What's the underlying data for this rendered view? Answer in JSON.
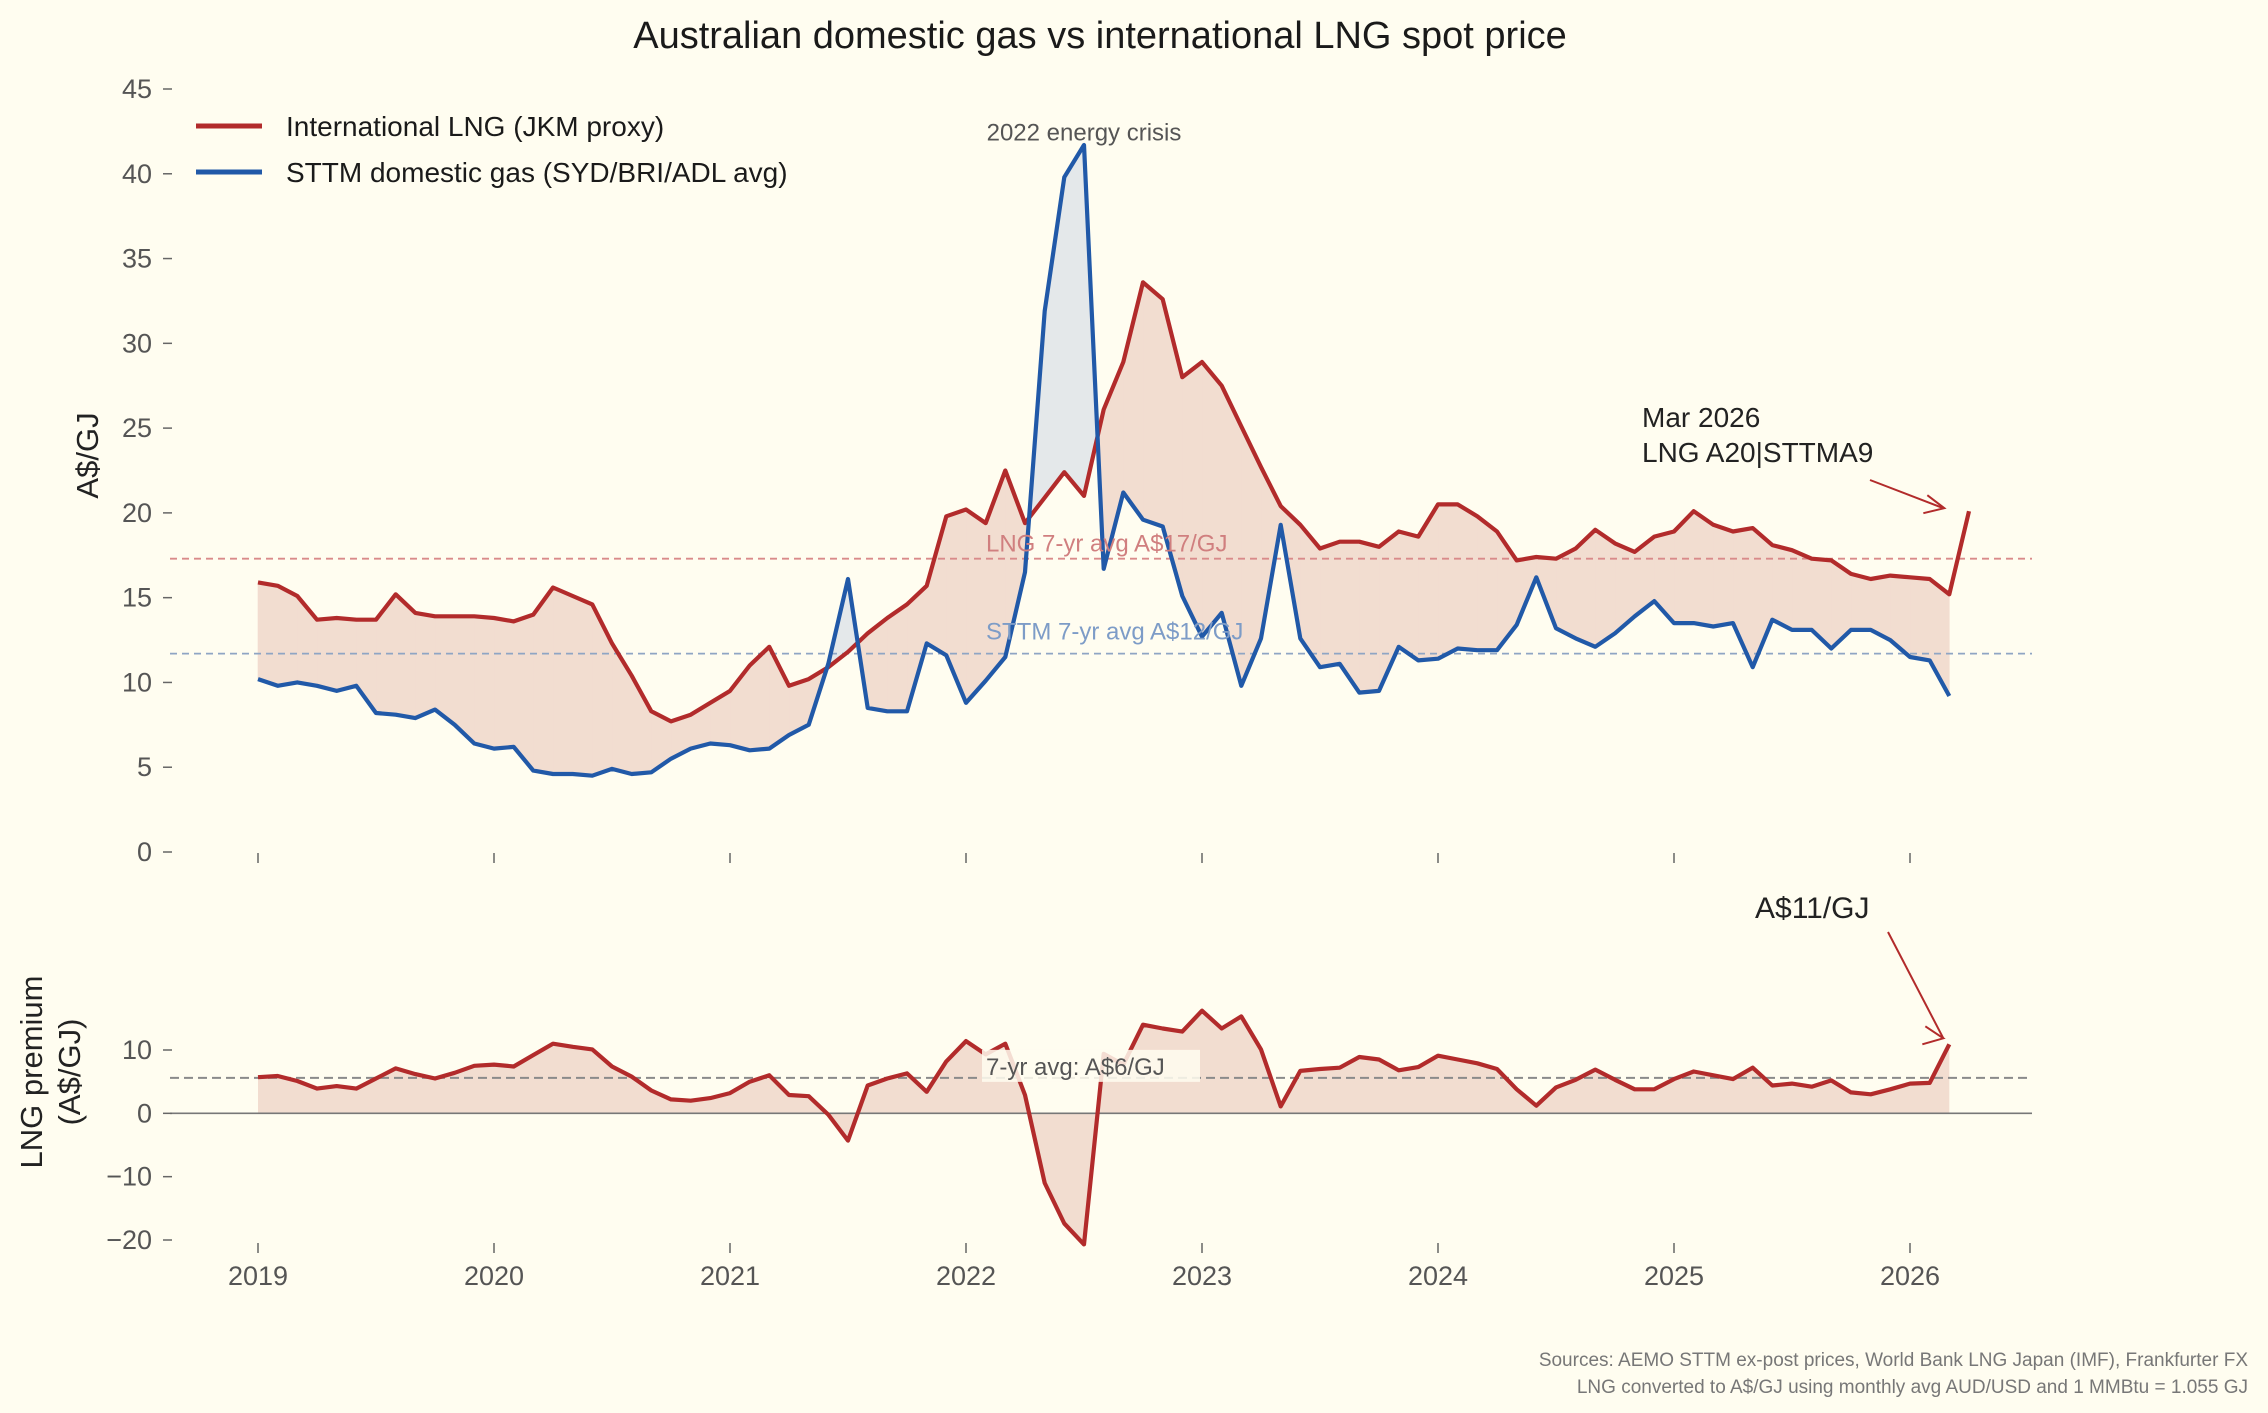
{
  "title": "Australian domestic gas vs international LNG spot price",
  "colors": {
    "lng": "#b22b2b",
    "sttm": "#2159a8",
    "fill_lng": "#f2ddd0",
    "fill_sttm": "#e4e8ea",
    "background": "#fffdf0"
  },
  "sources": [
    "Sources: AEMO STTM ex-post prices, World Bank LNG Japan (IMF), Frankfurter FX",
    "LNG converted to A$/GJ using monthly avg AUD/USD and 1 MMBtu = 1.055 GJ"
  ],
  "chart_data": [
    {
      "type": "line",
      "ylabel": "A$/GJ",
      "ylim": [
        0,
        45
      ],
      "yticks": [
        0,
        5,
        10,
        15,
        20,
        25,
        30,
        35,
        40,
        45
      ],
      "xlim": [
        "2018-08",
        "2026-07"
      ],
      "xticks": [
        "2019",
        "2020",
        "2021",
        "2022",
        "2023",
        "2024",
        "2025",
        "2026"
      ],
      "legend_position": "upper-left",
      "grid": false,
      "start": "2019-01",
      "series": [
        {
          "name": "International LNG (JKM proxy)",
          "color": "#b22b2b",
          "values": [
            15.9,
            15.7,
            15.1,
            13.7,
            13.8,
            13.7,
            13.7,
            15.2,
            14.1,
            13.9,
            13.9,
            13.9,
            13.8,
            13.6,
            14.0,
            15.6,
            15.1,
            14.6,
            12.3,
            10.4,
            8.3,
            7.7,
            8.1,
            8.8,
            9.5,
            11.0,
            12.1,
            9.8,
            10.2,
            10.9,
            11.8,
            12.9,
            13.8,
            14.6,
            15.7,
            19.8,
            20.2,
            19.4,
            22.5,
            19.4,
            20.9,
            22.4,
            21.0,
            26.1,
            28.9,
            33.6,
            32.6,
            28.0,
            28.9,
            27.5,
            25.1,
            22.7,
            20.4,
            19.3,
            17.9,
            18.3,
            18.3,
            18.0,
            18.9,
            18.6,
            20.5,
            20.5,
            19.8,
            18.9,
            17.2,
            17.4,
            17.3,
            17.9,
            19.0,
            18.2,
            17.7,
            18.6,
            18.9,
            20.1,
            19.3,
            18.9,
            19.1,
            18.1,
            17.8,
            17.3,
            17.2,
            16.4,
            16.1,
            16.3,
            16.2,
            16.1,
            15.2,
            20.1
          ]
        },
        {
          "name": "STTM domestic gas (SYD/BRI/ADL avg)",
          "color": "#2159a8",
          "values": [
            10.2,
            9.8,
            10.0,
            9.8,
            9.5,
            9.8,
            8.2,
            8.1,
            7.9,
            8.4,
            7.5,
            6.4,
            6.1,
            6.2,
            4.8,
            4.6,
            4.6,
            4.5,
            4.9,
            4.6,
            4.7,
            5.5,
            6.1,
            6.4,
            6.3,
            6.0,
            6.1,
            6.9,
            7.5,
            11.1,
            16.1,
            8.5,
            8.3,
            8.3,
            12.3,
            11.6,
            8.8,
            10.1,
            11.5,
            16.5,
            31.9,
            39.8,
            41.7,
            16.7,
            21.2,
            19.6,
            19.2,
            15.1,
            12.7,
            14.1,
            9.8,
            12.6,
            19.3,
            12.6,
            10.9,
            11.1,
            9.4,
            9.5,
            12.1,
            11.3,
            11.4,
            12.0,
            11.9,
            11.9,
            13.4,
            16.2,
            13.2,
            12.6,
            12.1,
            12.9,
            13.9,
            14.8,
            13.5,
            13.5,
            13.3,
            13.5,
            10.9,
            13.7,
            13.1,
            13.1,
            12.0,
            13.1,
            13.1,
            12.5,
            11.5,
            11.3,
            9.2
          ]
        }
      ],
      "reference_lines": [
        {
          "label": "LNG 7-yr avg A$17/GJ",
          "value": 17.3,
          "color": "#d98a8a"
        },
        {
          "label": "STTM 7-yr avg A$12/GJ",
          "value": 11.7,
          "color": "#8fa5c4"
        }
      ],
      "annotations": [
        {
          "text": "2022 energy crisis",
          "x": "2022-07",
          "y": 42.5
        },
        {
          "text": [
            "Mar 2026",
            "LNG A20|STTMA9"
          ],
          "x": "2026-03",
          "y": 20.1
        }
      ]
    },
    {
      "type": "area",
      "ylabel": [
        "LNG premium",
        "(A$/GJ)"
      ],
      "ylim": [
        -20,
        16
      ],
      "yticks": [
        -20,
        -10,
        0,
        10
      ],
      "xticks": [
        "2019",
        "2020",
        "2021",
        "2022",
        "2023",
        "2024",
        "2025",
        "2026"
      ],
      "start": "2019-01",
      "series": [
        {
          "name": "LNG premium",
          "color": "#b22b2b",
          "values": [
            5.7,
            5.9,
            5.1,
            3.9,
            4.3,
            3.9,
            5.5,
            7.1,
            6.2,
            5.5,
            6.4,
            7.5,
            7.7,
            7.4,
            9.2,
            11.0,
            10.5,
            10.1,
            7.4,
            5.8,
            3.6,
            2.2,
            2.0,
            2.4,
            3.2,
            5.0,
            6.0,
            2.9,
            2.7,
            -0.2,
            -4.3,
            4.4,
            5.5,
            6.3,
            3.4,
            8.2,
            11.4,
            9.3,
            11.0,
            2.9,
            -11.0,
            -17.4,
            -20.7,
            9.4,
            7.7,
            14.0,
            13.4,
            12.9,
            16.2,
            13.4,
            15.3,
            10.1,
            1.1,
            6.7,
            7.0,
            7.2,
            8.9,
            8.5,
            6.8,
            7.3,
            9.1,
            8.5,
            7.9,
            7.0,
            3.8,
            1.2,
            4.1,
            5.3,
            6.9,
            5.3,
            3.8,
            3.8,
            5.4,
            6.6,
            6.0,
            5.4,
            7.2,
            4.4,
            4.7,
            4.2,
            5.2,
            3.3,
            3.0,
            3.8,
            4.7,
            4.8,
            10.9
          ]
        }
      ],
      "reference_lines": [
        {
          "label": "7-yr avg: A$6/GJ",
          "value": 5.6,
          "color": "#888888"
        }
      ],
      "annotations": [
        {
          "text": "A$11/GJ",
          "x": "2026-03",
          "y": 10.9
        }
      ]
    }
  ]
}
